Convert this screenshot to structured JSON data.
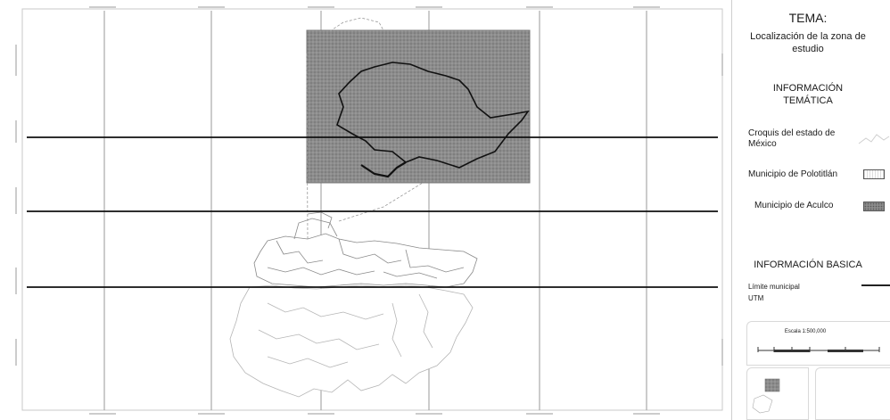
{
  "legend": {
    "tema_title": "TEMA:",
    "tema_subtitle": "Localización de la zona de estudio",
    "info_tematica": "INFORMACIÓN TEMÁTICA",
    "items": [
      {
        "label": "Croquis del estado de México",
        "icon": "state-outline-icon"
      },
      {
        "label": "Municipio de Polotitlán",
        "icon": "polotitlan-pattern-swatch"
      },
      {
        "label": "Municipio de Aculco",
        "icon": "aculco-pattern-swatch"
      }
    ],
    "info_basica": "INFORMACIÓN BASICA",
    "basic_items": [
      {
        "label": "Límite municipal",
        "icon": "line-swatch"
      },
      {
        "label": "UTM"
      }
    ],
    "scale_label": "Escala 1:500,000"
  },
  "colors": {
    "grid_line": "#9a9a9a",
    "utm_line": "#111111",
    "aculco_fill": "#8c8c8c",
    "outline": "#555555"
  }
}
